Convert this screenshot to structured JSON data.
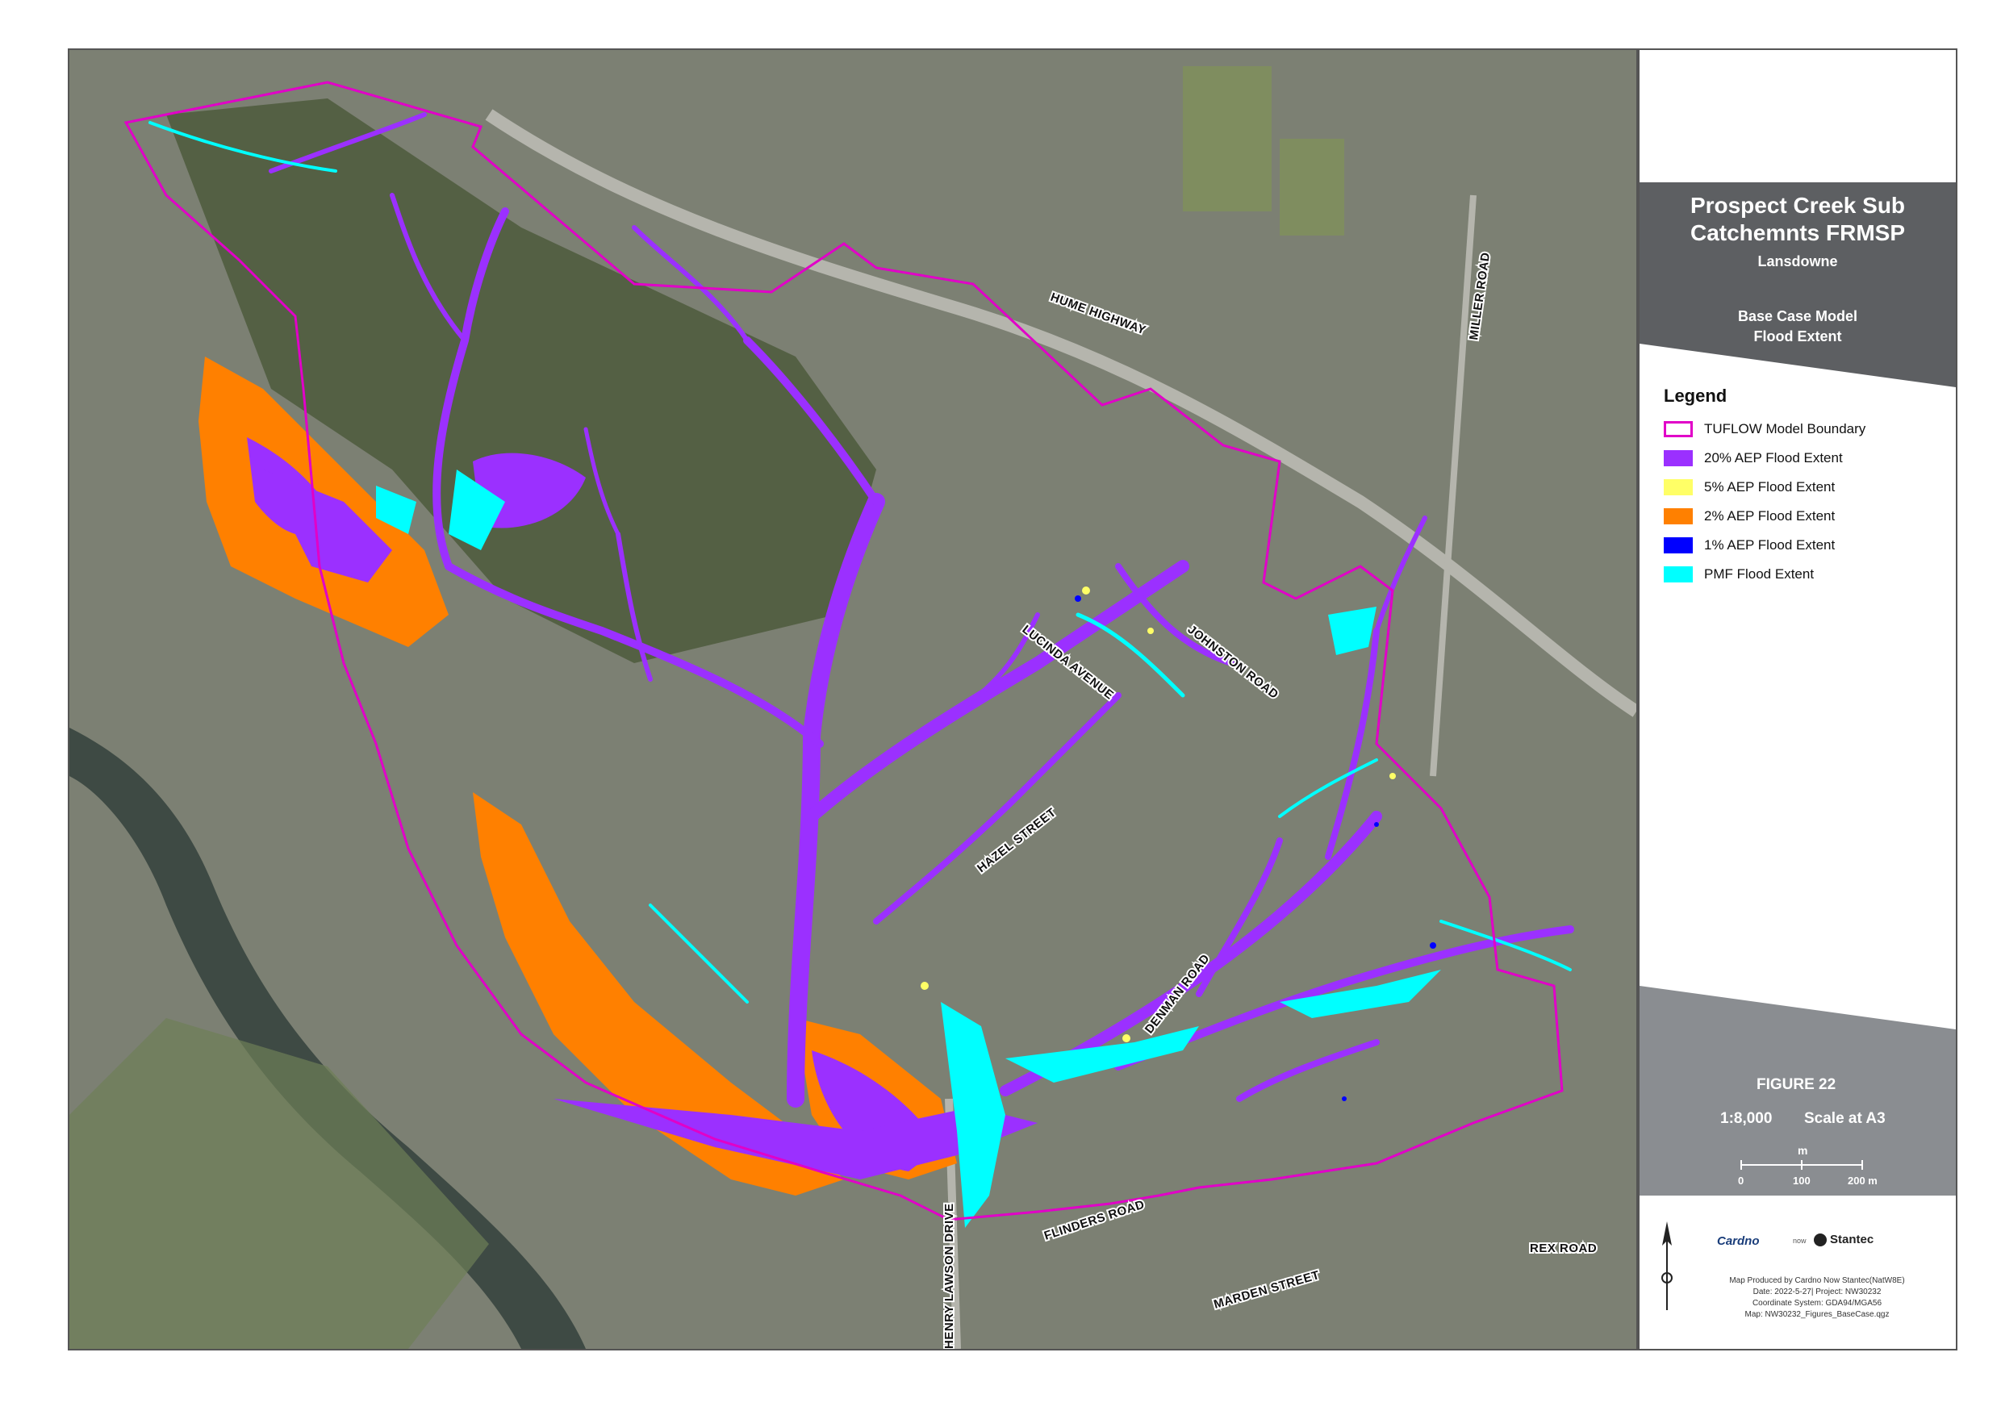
{
  "panel": {
    "title_line1": "Prospect Creek Sub",
    "title_line2": "Catchemnts FRMSP",
    "location": "Lansdowne",
    "subtitle_line1": "Base Case Model",
    "subtitle_line2": "Flood Extent"
  },
  "legend": {
    "title": "Legend",
    "items": [
      {
        "label": "TUFLOW Model Boundary",
        "color": "#e100c8",
        "style": "outline"
      },
      {
        "label": "20% AEP Flood Extent",
        "color": "#9b30ff",
        "style": "fill"
      },
      {
        "label": "5% AEP Flood Extent",
        "color": "#ffff66",
        "style": "fill"
      },
      {
        "label": "2% AEP Flood Extent",
        "color": "#ff8000",
        "style": "fill"
      },
      {
        "label": "1% AEP Flood Extent",
        "color": "#0000ff",
        "style": "fill"
      },
      {
        "label": "PMF Flood Extent",
        "color": "#00ffff",
        "style": "fill"
      }
    ]
  },
  "figure": {
    "label": "FIGURE 22",
    "scale": "1:8,000",
    "paper": "Scale at A3",
    "scalebar_unit": "m",
    "scalebar_ticks": [
      "0",
      "100",
      "200 m"
    ]
  },
  "logos": {
    "left": "Cardno",
    "right": "Stantec"
  },
  "meta": {
    "line1": "Map Produced by Cardno Now Stantec(NatW8E)",
    "line2": "Date: 2022-5-27| Project: NW30232",
    "line3": "Coordinate System: GDA94/MGA56",
    "line4": "Map:  NW30232_Figures_BaseCase.qgz"
  },
  "roads": {
    "hume": "HUME HIGHWAY",
    "miller": "MILLER ROAD",
    "lucinda": "LUCINDA AVENUE",
    "johnston": "JOHNSTON ROAD",
    "hazel": "HAZEL STREET",
    "denman": "DENMAN ROAD",
    "flinders": "FLINDERS ROAD",
    "marden": "MARDEN STREET",
    "rex": "REX ROAD",
    "henry": "HENRY LAWSON DRIVE"
  }
}
